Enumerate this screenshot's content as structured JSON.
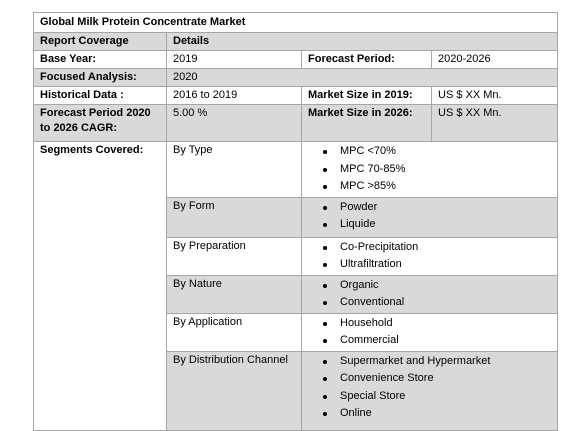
{
  "title": "Global Milk Protein Concentrate Market",
  "rows": [
    [
      "Report Coverage",
      "Details"
    ],
    [
      "Base Year:",
      "2019",
      "Forecast Period:",
      "2020-2026"
    ],
    [
      "Focused Analysis:",
      "2020"
    ],
    [
      "Historical Data :",
      "2016 to 2019",
      "Market Size in 2019:",
      "US $ XX Mn."
    ],
    [
      "Forecast Period 2020 to 2026 CAGR:",
      "5.00 %",
      "Market Size in 2026:",
      "US $ XX Mn."
    ]
  ],
  "segments": {
    "label": "Segments Covered:",
    "groups": [
      {
        "name": "By Type",
        "items": [
          "MPC <70%",
          "MPC 70-85%",
          "MPC >85%"
        ]
      },
      {
        "name": "By Form",
        "items": [
          "Powder",
          "Liquide"
        ]
      },
      {
        "name": "By Preparation",
        "items": [
          "Co-Precipitation",
          "Ultrafiltration"
        ]
      },
      {
        "name": "By Nature",
        "items": [
          "Organic",
          "Conventional"
        ]
      },
      {
        "name": "By Application",
        "items": [
          "Household",
          "Commercial"
        ]
      },
      {
        "name": "By Distribution Channel",
        "items": [
          "Supermarket and Hypermarket",
          "Convenience Store",
          "Special Store",
          "Online"
        ]
      }
    ]
  }
}
